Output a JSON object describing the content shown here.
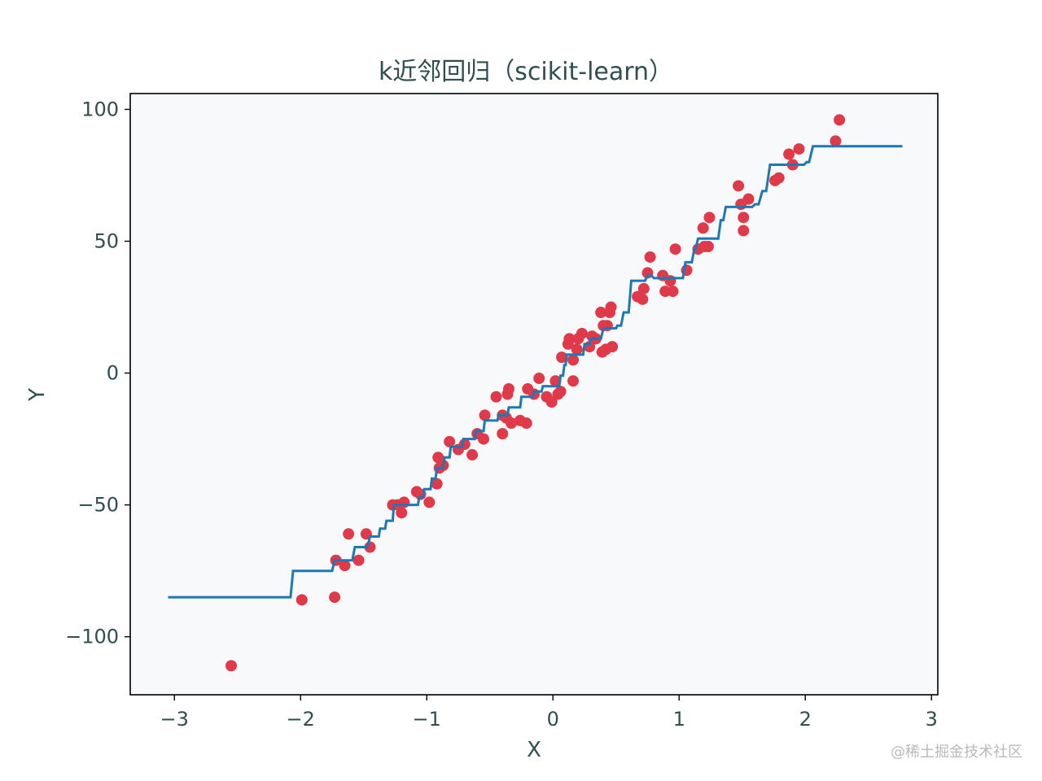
{
  "chart_data": {
    "type": "scatter+line",
    "title": "k近邻回归（scikit-learn）",
    "xlabel": "X",
    "ylabel": "Y",
    "xlim": [
      -3.35,
      3.05
    ],
    "ylim": [
      -122,
      106
    ],
    "xticks": [
      {
        "value": -3,
        "label": "−3"
      },
      {
        "value": -2,
        "label": "−2"
      },
      {
        "value": -1,
        "label": "−1"
      },
      {
        "value": 0,
        "label": "0"
      },
      {
        "value": 1,
        "label": "1"
      },
      {
        "value": 2,
        "label": "2"
      },
      {
        "value": 3,
        "label": "3"
      }
    ],
    "yticks": [
      {
        "value": -100,
        "label": "−100"
      },
      {
        "value": -50,
        "label": "−50"
      },
      {
        "value": 0,
        "label": "0"
      },
      {
        "value": 50,
        "label": "50"
      },
      {
        "value": 100,
        "label": "100"
      }
    ],
    "grid": false,
    "plot_background": "#f7f9fb",
    "series": [
      {
        "kind": "scatter",
        "color": "#e03a4a",
        "points": [
          [
            -2.55,
            -111
          ],
          [
            -1.99,
            -86
          ],
          [
            -1.73,
            -85
          ],
          [
            -1.72,
            -71
          ],
          [
            -1.65,
            -73
          ],
          [
            -1.62,
            -61
          ],
          [
            -1.54,
            -71
          ],
          [
            -1.48,
            -61
          ],
          [
            -1.45,
            -66
          ],
          [
            -1.27,
            -50
          ],
          [
            -1.23,
            -50
          ],
          [
            -1.2,
            -53
          ],
          [
            -1.18,
            -49
          ],
          [
            -1.08,
            -45
          ],
          [
            -1.05,
            -46
          ],
          [
            -0.98,
            -49
          ],
          [
            -0.92,
            -42
          ],
          [
            -0.91,
            -32
          ],
          [
            -0.9,
            -36
          ],
          [
            -0.87,
            -35
          ],
          [
            -0.82,
            -26
          ],
          [
            -0.75,
            -29
          ],
          [
            -0.7,
            -27
          ],
          [
            -0.64,
            -31
          ],
          [
            -0.6,
            -23
          ],
          [
            -0.55,
            -25
          ],
          [
            -0.54,
            -16
          ],
          [
            -0.45,
            -9
          ],
          [
            -0.4,
            -16
          ],
          [
            -0.4,
            -23
          ],
          [
            -0.37,
            -17
          ],
          [
            -0.36,
            -8
          ],
          [
            -0.35,
            -6
          ],
          [
            -0.33,
            -19
          ],
          [
            -0.26,
            -18
          ],
          [
            -0.21,
            -19
          ],
          [
            -0.2,
            -6
          ],
          [
            -0.15,
            -8
          ],
          [
            -0.11,
            -2
          ],
          [
            -0.05,
            -9
          ],
          [
            -0.01,
            -11
          ],
          [
            0.02,
            -3
          ],
          [
            0.04,
            -8
          ],
          [
            0.06,
            -7
          ],
          [
            0.07,
            6
          ],
          [
            0.12,
            11
          ],
          [
            0.13,
            13
          ],
          [
            0.16,
            -3
          ],
          [
            0.16,
            5
          ],
          [
            0.19,
            9
          ],
          [
            0.2,
            13
          ],
          [
            0.23,
            15
          ],
          [
            0.29,
            10
          ],
          [
            0.31,
            14
          ],
          [
            0.34,
            13
          ],
          [
            0.38,
            23
          ],
          [
            0.39,
            8
          ],
          [
            0.4,
            18
          ],
          [
            0.42,
            9
          ],
          [
            0.43,
            18
          ],
          [
            0.45,
            23
          ],
          [
            0.46,
            25
          ],
          [
            0.47,
            10
          ],
          [
            0.67,
            29
          ],
          [
            0.71,
            28
          ],
          [
            0.72,
            32
          ],
          [
            0.75,
            38
          ],
          [
            0.77,
            44
          ],
          [
            0.87,
            37
          ],
          [
            0.89,
            31
          ],
          [
            0.93,
            35
          ],
          [
            0.95,
            31
          ],
          [
            0.97,
            47
          ],
          [
            1.06,
            39
          ],
          [
            1.15,
            47
          ],
          [
            1.19,
            55
          ],
          [
            1.2,
            48
          ],
          [
            1.23,
            48
          ],
          [
            1.24,
            59
          ],
          [
            1.47,
            71
          ],
          [
            1.49,
            64
          ],
          [
            1.51,
            59
          ],
          [
            1.51,
            54
          ],
          [
            1.55,
            66
          ],
          [
            1.76,
            73
          ],
          [
            1.79,
            74
          ],
          [
            1.87,
            83
          ],
          [
            1.9,
            79
          ],
          [
            1.95,
            85
          ],
          [
            2.24,
            88
          ],
          [
            2.27,
            96
          ]
        ]
      },
      {
        "kind": "step-line",
        "color": "#1f77b4",
        "points": [
          [
            -3.05,
            -85
          ],
          [
            -2.08,
            -85
          ],
          [
            -2.06,
            -75
          ],
          [
            -1.75,
            -75
          ],
          [
            -1.73,
            -71
          ],
          [
            -1.59,
            -71
          ],
          [
            -1.57,
            -66
          ],
          [
            -1.47,
            -66
          ],
          [
            -1.45,
            -62
          ],
          [
            -1.38,
            -62
          ],
          [
            -1.37,
            -59
          ],
          [
            -1.33,
            -59
          ],
          [
            -1.32,
            -56
          ],
          [
            -1.27,
            -56
          ],
          [
            -1.26,
            -50
          ],
          [
            -1.07,
            -50
          ],
          [
            -1.06,
            -47
          ],
          [
            -1.03,
            -47
          ],
          [
            -1.02,
            -44
          ],
          [
            -0.97,
            -44
          ],
          [
            -0.96,
            -40
          ],
          [
            -0.93,
            -40
          ],
          [
            -0.92,
            -36
          ],
          [
            -0.87,
            -36
          ],
          [
            -0.86,
            -32
          ],
          [
            -0.82,
            -32
          ],
          [
            -0.81,
            -28
          ],
          [
            -0.72,
            -28
          ],
          [
            -0.71,
            -25
          ],
          [
            -0.62,
            -25
          ],
          [
            -0.61,
            -22
          ],
          [
            -0.55,
            -22
          ],
          [
            -0.54,
            -18
          ],
          [
            -0.44,
            -18
          ],
          [
            -0.43,
            -16
          ],
          [
            -0.36,
            -16
          ],
          [
            -0.35,
            -13
          ],
          [
            -0.26,
            -13
          ],
          [
            -0.25,
            -9
          ],
          [
            -0.16,
            -9
          ],
          [
            -0.15,
            -7
          ],
          [
            -0.09,
            -7
          ],
          [
            -0.08,
            -5
          ],
          [
            0.05,
            -5
          ],
          [
            0.06,
            -1
          ],
          [
            0.08,
            -1
          ],
          [
            0.09,
            3
          ],
          [
            0.1,
            3
          ],
          [
            0.11,
            7
          ],
          [
            0.24,
            7
          ],
          [
            0.25,
            11
          ],
          [
            0.29,
            11
          ],
          [
            0.3,
            13
          ],
          [
            0.38,
            13
          ],
          [
            0.4,
            17
          ],
          [
            0.5,
            17
          ],
          [
            0.51,
            18
          ],
          [
            0.54,
            18
          ],
          [
            0.56,
            23
          ],
          [
            0.6,
            23
          ],
          [
            0.62,
            35
          ],
          [
            0.73,
            35
          ],
          [
            0.75,
            37
          ],
          [
            0.78,
            37
          ],
          [
            0.8,
            36
          ],
          [
            1.03,
            36
          ],
          [
            1.05,
            42
          ],
          [
            1.1,
            42
          ],
          [
            1.12,
            47
          ],
          [
            1.13,
            47
          ],
          [
            1.15,
            51
          ],
          [
            1.31,
            51
          ],
          [
            1.33,
            58
          ],
          [
            1.35,
            58
          ],
          [
            1.37,
            63
          ],
          [
            1.58,
            63
          ],
          [
            1.6,
            64
          ],
          [
            1.63,
            64
          ],
          [
            1.66,
            69
          ],
          [
            1.69,
            69
          ],
          [
            1.72,
            79
          ],
          [
            1.99,
            79
          ],
          [
            2.01,
            80
          ],
          [
            2.03,
            80
          ],
          [
            2.06,
            86
          ],
          [
            2.77,
            86
          ]
        ]
      }
    ]
  },
  "watermark": "@稀土掘金技术社区"
}
